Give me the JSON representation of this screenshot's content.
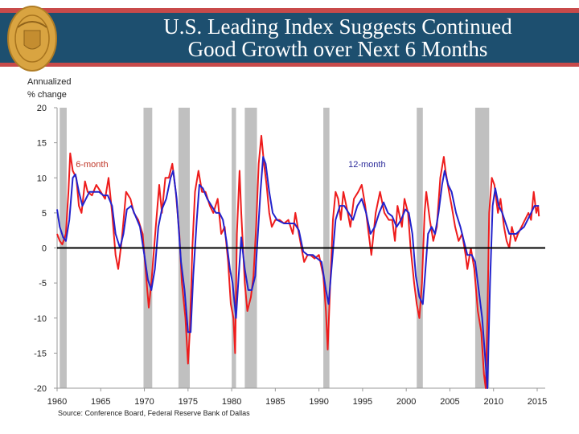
{
  "header": {
    "title_line1": "U.S. Leading Index Suggests Continued",
    "title_line2": "Good Growth over Next 6 Months",
    "logo": "Federal Reserve Bank of Dallas seal",
    "colors": {
      "band": "#1d4f6f",
      "stripe": "#c84a4a",
      "seal": "#d9a441"
    }
  },
  "chart_data": {
    "type": "line",
    "title": "",
    "ylabel_line1": "Annualized",
    "ylabel_line2": "% change",
    "xlabel": "",
    "xlim": [
      1960,
      2015
    ],
    "ylim": [
      -20,
      20
    ],
    "xticks": [
      "1960",
      "1965",
      "1970",
      "1975",
      "1980",
      "1985",
      "1990",
      "1995",
      "2000",
      "2005",
      "2010",
      "2015"
    ],
    "yticks": [
      "20",
      "15",
      "10",
      "5",
      "0",
      "-5",
      "-10",
      "-15",
      "-20"
    ],
    "grid": false,
    "zero_line": true,
    "recessions": [
      [
        1960.3,
        1961.1
      ],
      [
        1969.9,
        1970.9
      ],
      [
        1973.9,
        1975.2
      ],
      [
        1980.0,
        1980.5
      ],
      [
        1981.5,
        1982.9
      ],
      [
        1990.5,
        1991.2
      ],
      [
        2001.2,
        2001.9
      ],
      [
        2007.9,
        2009.5
      ]
    ],
    "recession_color": "#c0c0c0",
    "series": [
      {
        "name": "6-month",
        "color": "#ee1c1c",
        "points": [
          [
            1960.0,
            2
          ],
          [
            1960.3,
            1
          ],
          [
            1960.6,
            0.5
          ],
          [
            1961.0,
            2
          ],
          [
            1961.3,
            8
          ],
          [
            1961.5,
            13.5
          ],
          [
            1961.8,
            11
          ],
          [
            1962.2,
            10
          ],
          [
            1962.5,
            6
          ],
          [
            1962.8,
            5
          ],
          [
            1963.2,
            9.5
          ],
          [
            1963.5,
            8
          ],
          [
            1964.0,
            7.5
          ],
          [
            1964.5,
            9
          ],
          [
            1965.0,
            8
          ],
          [
            1965.5,
            7
          ],
          [
            1965.9,
            10
          ],
          [
            1966.3,
            5
          ],
          [
            1966.7,
            -1
          ],
          [
            1967.0,
            -3
          ],
          [
            1967.4,
            1
          ],
          [
            1967.9,
            8
          ],
          [
            1968.4,
            7
          ],
          [
            1968.8,
            5
          ],
          [
            1969.3,
            4
          ],
          [
            1969.8,
            2
          ],
          [
            1970.2,
            -4
          ],
          [
            1970.5,
            -8.5
          ],
          [
            1970.8,
            -5
          ],
          [
            1971.3,
            3
          ],
          [
            1971.7,
            9
          ],
          [
            1972.0,
            5
          ],
          [
            1972.4,
            10
          ],
          [
            1972.8,
            10
          ],
          [
            1973.2,
            12
          ],
          [
            1973.6,
            8
          ],
          [
            1974.0,
            2
          ],
          [
            1974.3,
            -5
          ],
          [
            1974.7,
            -10
          ],
          [
            1975.0,
            -16.5
          ],
          [
            1975.2,
            -12
          ],
          [
            1975.5,
            0
          ],
          [
            1975.8,
            8
          ],
          [
            1976.2,
            11
          ],
          [
            1976.6,
            8
          ],
          [
            1977.0,
            8
          ],
          [
            1977.5,
            6
          ],
          [
            1977.9,
            5
          ],
          [
            1978.4,
            7
          ],
          [
            1978.8,
            2
          ],
          [
            1979.2,
            3
          ],
          [
            1979.6,
            -2
          ],
          [
            1979.9,
            -8
          ],
          [
            1980.2,
            -10
          ],
          [
            1980.4,
            -15
          ],
          [
            1980.6,
            2
          ],
          [
            1980.9,
            11
          ],
          [
            1981.1,
            5
          ],
          [
            1981.5,
            -5
          ],
          [
            1981.8,
            -9
          ],
          [
            1982.2,
            -7
          ],
          [
            1982.5,
            -4
          ],
          [
            1982.8,
            3
          ],
          [
            1983.1,
            12
          ],
          [
            1983.4,
            16
          ],
          [
            1983.7,
            12
          ],
          [
            1984.0,
            9
          ],
          [
            1984.3,
            5
          ],
          [
            1984.6,
            3
          ],
          [
            1985.0,
            4
          ],
          [
            1985.5,
            4
          ],
          [
            1986.0,
            3.5
          ],
          [
            1986.5,
            4
          ],
          [
            1987.0,
            2
          ],
          [
            1987.3,
            5
          ],
          [
            1987.7,
            2
          ],
          [
            1988.0,
            0
          ],
          [
            1988.3,
            -2
          ],
          [
            1988.7,
            -1
          ],
          [
            1989.0,
            -1
          ],
          [
            1989.5,
            -1.5
          ],
          [
            1990.0,
            -1
          ],
          [
            1990.5,
            -4
          ],
          [
            1990.8,
            -9
          ],
          [
            1991.0,
            -14.5
          ],
          [
            1991.3,
            -5
          ],
          [
            1991.6,
            4
          ],
          [
            1991.9,
            8
          ],
          [
            1992.2,
            7
          ],
          [
            1992.5,
            4
          ],
          [
            1992.8,
            8
          ],
          [
            1993.3,
            5
          ],
          [
            1993.6,
            3
          ],
          [
            1994.0,
            7
          ],
          [
            1994.5,
            8
          ],
          [
            1994.9,
            9
          ],
          [
            1995.3,
            6
          ],
          [
            1995.7,
            2
          ],
          [
            1996.0,
            -1
          ],
          [
            1996.5,
            5
          ],
          [
            1997.0,
            8
          ],
          [
            1997.5,
            5
          ],
          [
            1998.0,
            4
          ],
          [
            1998.4,
            4
          ],
          [
            1998.7,
            1
          ],
          [
            1999.0,
            6
          ],
          [
            1999.5,
            3
          ],
          [
            1999.8,
            7
          ],
          [
            2000.2,
            5
          ],
          [
            2000.5,
            0
          ],
          [
            2000.9,
            -5
          ],
          [
            2001.2,
            -8
          ],
          [
            2001.5,
            -10
          ],
          [
            2001.8,
            -5
          ],
          [
            2002.1,
            5
          ],
          [
            2002.3,
            8
          ],
          [
            2002.7,
            4
          ],
          [
            2003.1,
            1
          ],
          [
            2003.5,
            3
          ],
          [
            2003.9,
            10
          ],
          [
            2004.3,
            13
          ],
          [
            2004.5,
            11
          ],
          [
            2004.9,
            8
          ],
          [
            2005.2,
            6
          ],
          [
            2005.6,
            3
          ],
          [
            2006.0,
            1
          ],
          [
            2006.4,
            2
          ],
          [
            2006.8,
            -1
          ],
          [
            2007.0,
            -3
          ],
          [
            2007.4,
            0
          ],
          [
            2007.8,
            -3
          ],
          [
            2008.2,
            -9
          ],
          [
            2008.6,
            -12
          ],
          [
            2008.9,
            -18
          ],
          [
            2009.1,
            -21
          ],
          [
            2009.3,
            -10
          ],
          [
            2009.5,
            5
          ],
          [
            2009.8,
            10
          ],
          [
            2010.1,
            9
          ],
          [
            2010.5,
            5
          ],
          [
            2010.8,
            7
          ],
          [
            2011.2,
            3
          ],
          [
            2011.5,
            1
          ],
          [
            2011.8,
            0
          ],
          [
            2012.1,
            3
          ],
          [
            2012.5,
            1
          ],
          [
            2012.8,
            2
          ],
          [
            2013.2,
            3
          ],
          [
            2013.6,
            4
          ],
          [
            2014.0,
            5
          ],
          [
            2014.3,
            4
          ],
          [
            2014.6,
            8
          ],
          [
            2014.9,
            5
          ],
          [
            2015.1,
            6
          ],
          [
            2015.2,
            4.5
          ]
        ]
      },
      {
        "name": "12-month",
        "color": "#2222cc",
        "points": [
          [
            1960.0,
            5.5
          ],
          [
            1960.3,
            3
          ],
          [
            1960.7,
            1.5
          ],
          [
            1961.0,
            1
          ],
          [
            1961.4,
            4
          ],
          [
            1961.8,
            10
          ],
          [
            1962.1,
            10.5
          ],
          [
            1962.5,
            8
          ],
          [
            1962.9,
            6
          ],
          [
            1963.3,
            7
          ],
          [
            1963.7,
            8
          ],
          [
            1964.3,
            8
          ],
          [
            1964.8,
            8
          ],
          [
            1965.3,
            7.5
          ],
          [
            1965.8,
            7.5
          ],
          [
            1966.3,
            6
          ],
          [
            1966.7,
            2
          ],
          [
            1967.2,
            0
          ],
          [
            1967.6,
            2
          ],
          [
            1968.0,
            5.5
          ],
          [
            1968.5,
            6
          ],
          [
            1969.0,
            4.5
          ],
          [
            1969.5,
            3
          ],
          [
            1970.0,
            -1
          ],
          [
            1970.4,
            -4.5
          ],
          [
            1970.8,
            -6
          ],
          [
            1971.2,
            -3
          ],
          [
            1971.6,
            3
          ],
          [
            1972.0,
            5.5
          ],
          [
            1972.5,
            7
          ],
          [
            1973.0,
            10
          ],
          [
            1973.3,
            11
          ],
          [
            1973.7,
            7
          ],
          [
            1974.2,
            -2
          ],
          [
            1974.6,
            -6
          ],
          [
            1975.0,
            -12
          ],
          [
            1975.3,
            -12
          ],
          [
            1975.6,
            -4
          ],
          [
            1976.0,
            4
          ],
          [
            1976.3,
            9
          ],
          [
            1976.7,
            8.5
          ],
          [
            1977.2,
            7
          ],
          [
            1977.7,
            6
          ],
          [
            1978.2,
            5
          ],
          [
            1978.6,
            5
          ],
          [
            1979.0,
            4
          ],
          [
            1979.4,
            1
          ],
          [
            1979.8,
            -3
          ],
          [
            1980.1,
            -5
          ],
          [
            1980.5,
            -10
          ],
          [
            1980.8,
            -4
          ],
          [
            1981.1,
            1.5
          ],
          [
            1981.5,
            -3
          ],
          [
            1981.9,
            -6
          ],
          [
            1982.3,
            -6
          ],
          [
            1982.7,
            -4
          ],
          [
            1983.0,
            2
          ],
          [
            1983.3,
            8
          ],
          [
            1983.6,
            13
          ],
          [
            1983.9,
            12
          ],
          [
            1984.3,
            8
          ],
          [
            1984.7,
            5
          ],
          [
            1985.2,
            4
          ],
          [
            1986.0,
            3.5
          ],
          [
            1986.7,
            3.5
          ],
          [
            1987.2,
            3.5
          ],
          [
            1987.7,
            2.5
          ],
          [
            1988.2,
            -0.5
          ],
          [
            1988.7,
            -1
          ],
          [
            1989.3,
            -1
          ],
          [
            1989.8,
            -1.5
          ],
          [
            1990.3,
            -2
          ],
          [
            1990.8,
            -6
          ],
          [
            1991.1,
            -8
          ],
          [
            1991.5,
            -2
          ],
          [
            1991.9,
            4
          ],
          [
            1992.4,
            6
          ],
          [
            1992.9,
            6
          ],
          [
            1993.4,
            5
          ],
          [
            1993.9,
            4
          ],
          [
            1994.4,
            6
          ],
          [
            1994.9,
            7
          ],
          [
            1995.4,
            5
          ],
          [
            1995.9,
            2
          ],
          [
            1996.4,
            3
          ],
          [
            1996.9,
            5
          ],
          [
            1997.4,
            6.5
          ],
          [
            1997.9,
            5
          ],
          [
            1998.4,
            4.5
          ],
          [
            1998.9,
            3
          ],
          [
            1999.4,
            4
          ],
          [
            1999.9,
            5.5
          ],
          [
            2000.3,
            5
          ],
          [
            2000.7,
            2
          ],
          [
            2001.1,
            -4
          ],
          [
            2001.5,
            -7
          ],
          [
            2001.9,
            -8
          ],
          [
            2002.2,
            -3
          ],
          [
            2002.5,
            2
          ],
          [
            2002.9,
            3
          ],
          [
            2003.3,
            2
          ],
          [
            2003.7,
            5
          ],
          [
            2004.1,
            9
          ],
          [
            2004.4,
            11
          ],
          [
            2004.8,
            9
          ],
          [
            2005.2,
            8
          ],
          [
            2005.7,
            5
          ],
          [
            2006.2,
            3
          ],
          [
            2006.6,
            1
          ],
          [
            2007.0,
            -1
          ],
          [
            2007.5,
            -1
          ],
          [
            2007.9,
            -2
          ],
          [
            2008.3,
            -6
          ],
          [
            2008.7,
            -10
          ],
          [
            2009.0,
            -15
          ],
          [
            2009.3,
            -20
          ],
          [
            2009.6,
            -5
          ],
          [
            2009.9,
            6
          ],
          [
            2010.2,
            8.5
          ],
          [
            2010.6,
            6
          ],
          [
            2011.0,
            5
          ],
          [
            2011.4,
            3.5
          ],
          [
            2011.8,
            2
          ],
          [
            2012.2,
            2
          ],
          [
            2012.6,
            2
          ],
          [
            2013.0,
            2.5
          ],
          [
            2013.5,
            3
          ],
          [
            2013.9,
            4
          ],
          [
            2014.3,
            5
          ],
          [
            2014.7,
            6
          ],
          [
            2015.0,
            6
          ],
          [
            2015.2,
            6
          ]
        ]
      }
    ],
    "annotations": [
      {
        "text": "6-month",
        "series": "6-month",
        "x": 1964.0,
        "y": 11.5
      },
      {
        "text": "12-month",
        "series": "12-month",
        "x": 1995.5,
        "y": 11.5
      }
    ]
  },
  "source": "Source: Conference Board, Federal Reserve Bank of Dallas"
}
